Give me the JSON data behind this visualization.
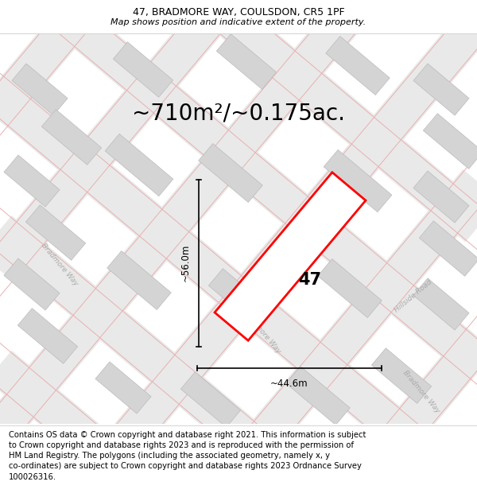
{
  "title": "47, BRADMORE WAY, COULSDON, CR5 1PF",
  "subtitle": "Map shows position and indicative extent of the property.",
  "area_text": "~710m²/~0.175ac.",
  "property_number": "47",
  "dim_vertical": "~56.0m",
  "dim_horizontal": "~44.6m",
  "footer_text": "Contains OS data © Crown copyright and database right 2021. This information is subject to Crown copyright and database rights 2023 and is reproduced with the permission of HM Land Registry. The polygons (including the associated geometry, namely x, y co-ordinates) are subject to Crown copyright and database rights 2023 Ordnance Survey 100026316.",
  "map_bg": "#f7f7f7",
  "title_bg": "#ffffff",
  "footer_bg": "#ffffff",
  "property_edge": "#ff0000",
  "road_color": "#e8e8e8",
  "road_edge_color": "#d0a0a0",
  "building_color": "#d4d4d4",
  "building_edge": "#bbbbbb",
  "title_fontsize": 9,
  "subtitle_fontsize": 8,
  "area_fontsize": 20,
  "dim_fontsize": 8.5,
  "footer_fontsize": 7.2,
  "street_label_color": "#aaaaaa",
  "street_label_fontsize": 6.5
}
